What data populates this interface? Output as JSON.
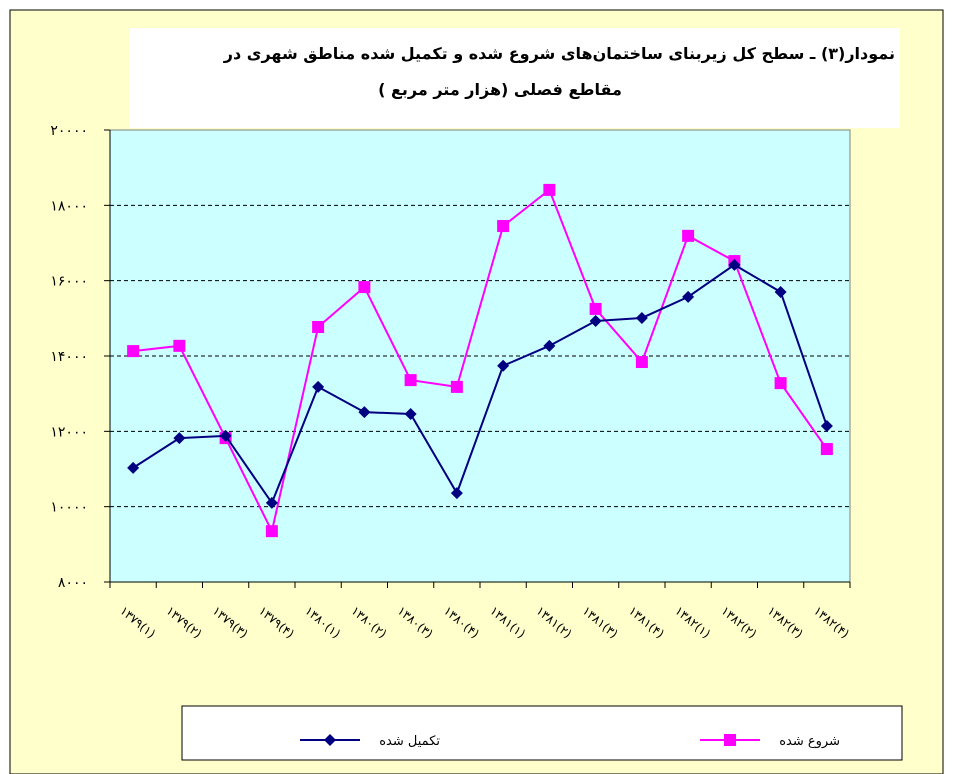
{
  "chart_data": {
    "type": "line",
    "title": [
      "نمودار(۳) ـ سطح کل زیربنای ساختمان‌های شروع شده و تکمیل شده مناطق شهری در",
      "مقاطع فصلی (هزار متر مربع )"
    ],
    "categories": [
      "۱۳۷۹(۱)",
      "۱۳۷۹(۲)",
      "۱۳۷۹(۳)",
      "۱۳۷۹(۴)",
      "۱۳۸۰(۱)",
      "۱۳۸۰(۲)",
      "۱۳۸۰(۳)",
      "۱۳۸۰(۴)",
      "۱۳۸۱(۱)",
      "۱۳۸۱(۲)",
      "۱۳۸۱(۳)",
      "۱۳۸۱(۴)",
      "۱۳۸۲(۱)",
      "۱۳۸۲(۲)",
      "۱۳۸۲(۳)",
      "۱۳۸۲(۴)"
    ],
    "series": [
      {
        "name": "تکمیل شده",
        "color": "#000080",
        "marker": "diamond",
        "values": [
          11030,
          11820,
          11880,
          10100,
          13180,
          12510,
          12460,
          10360,
          13740,
          14270,
          14930,
          15010,
          15570,
          16420,
          15700,
          12140
        ]
      },
      {
        "name": "شروع شده",
        "color": "#ff00ff",
        "marker": "square",
        "values": [
          14130,
          14270,
          11820,
          9350,
          14770,
          15830,
          13360,
          13180,
          17450,
          18410,
          15250,
          13840,
          17190,
          16520,
          13280,
          11530
        ]
      }
    ],
    "ylim": [
      8000,
      20000
    ],
    "yticks": [
      {
        "value": 8000,
        "label": "۸۰۰۰"
      },
      {
        "value": 10000,
        "label": "۱۰۰۰۰"
      },
      {
        "value": 12000,
        "label": "۱۲۰۰۰"
      },
      {
        "value": 14000,
        "label": "۱۴۰۰۰"
      },
      {
        "value": 16000,
        "label": "۱۶۰۰۰"
      },
      {
        "value": 18000,
        "label": "۱۸۰۰۰"
      },
      {
        "value": 20000,
        "label": "۲۰۰۰۰"
      }
    ],
    "grid": true
  }
}
